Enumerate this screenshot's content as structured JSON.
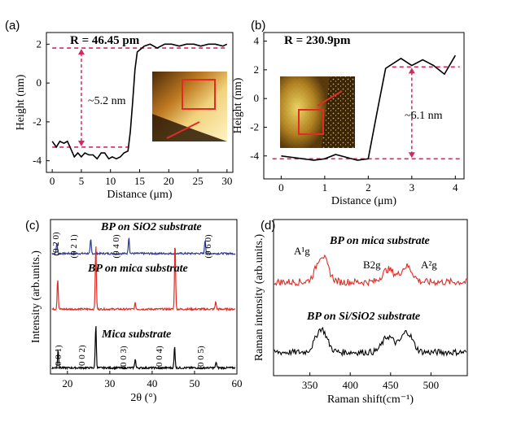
{
  "chart_data": [
    {
      "panel": "(a)",
      "type": "line",
      "title": "",
      "annotation_top": "R = 46.45 pm",
      "annotation_step": "~5.2 nm",
      "xlabel": "Distance (μm)",
      "ylabel": "Height (nm)",
      "xlim": [
        -1,
        31
      ],
      "ylim": [
        -4.6,
        2.6
      ],
      "xticks": [
        0,
        5,
        10,
        15,
        20,
        25,
        30
      ],
      "yticks": [
        2,
        0,
        -2,
        -4
      ],
      "x": [
        0,
        0.7,
        1.3,
        2,
        2.6,
        3.2,
        3.8,
        4.4,
        5,
        5.6,
        6.3,
        7,
        7.7,
        8.4,
        9,
        9.7,
        10.3,
        11,
        11.7,
        12.3,
        13,
        13.4,
        13.8,
        14.2,
        14.6,
        15.0,
        15.8,
        16.8,
        18,
        19.3,
        20.5,
        21.8,
        23,
        24.3,
        25.5,
        26.8,
        28,
        29.3,
        30
      ],
      "y": [
        -3.0,
        -3.3,
        -3.0,
        -3.1,
        -3.0,
        -3.4,
        -3.8,
        -3.6,
        -3.8,
        -3.6,
        -3.7,
        -3.7,
        -3.9,
        -3.6,
        -3.6,
        -3.9,
        -3.8,
        -3.9,
        -3.8,
        -3.6,
        -3.5,
        -2.5,
        -1.0,
        0.7,
        1.6,
        1.7,
        1.9,
        2.0,
        1.8,
        2.0,
        2.0,
        1.9,
        2.0,
        2.0,
        1.9,
        2.0,
        2.0,
        1.9,
        2.0
      ],
      "dashed_levels": [
        1.8,
        -3.3
      ],
      "arrow_x": 5
    },
    {
      "panel": "(b)",
      "type": "line",
      "title": "",
      "annotation_top": "R = 230.9pm",
      "annotation_step": "~6.1 nm",
      "xlabel": "Distance (μm)",
      "ylabel": "Height (nm)",
      "xlim": [
        -0.4,
        4.2
      ],
      "ylim": [
        -5.6,
        4.6
      ],
      "xticks": [
        0,
        1,
        2,
        3,
        4
      ],
      "yticks": [
        4,
        2,
        0,
        -2,
        -4
      ],
      "x": [
        0,
        0.25,
        0.5,
        0.75,
        1.0,
        1.25,
        1.5,
        1.75,
        2.0,
        2.2,
        2.4,
        2.75,
        3.0,
        3.25,
        3.5,
        3.75,
        4.0
      ],
      "y": [
        -4.0,
        -4.1,
        -4.2,
        -4.3,
        -4.2,
        -3.9,
        -4.1,
        -4.3,
        -4.2,
        -1.0,
        2.1,
        2.8,
        2.3,
        2.7,
        2.3,
        1.7,
        3.0
      ],
      "dashed_levels": [
        2.2,
        -4.2
      ],
      "arrow_x": 3.0
    },
    {
      "panel": "(c)",
      "type": "line",
      "title": "",
      "xlabel": "2θ (°)",
      "ylabel": "Intensity (arb.units.)",
      "xlim": [
        16,
        60
      ],
      "xticks": [
        20,
        30,
        40,
        50,
        60
      ],
      "series": [
        {
          "name": "BP on SiO2 substrate",
          "color": "#2e3b8e",
          "baseline": 0.78,
          "peaks": [
            [
              17.5,
              0.07
            ],
            [
              25.5,
              0.09
            ],
            [
              34.5,
              0.11
            ],
            [
              52.5,
              0.09
            ]
          ]
        },
        {
          "name": "BP on mica substrate",
          "color": "#e12b25",
          "baseline": 0.42,
          "peaks": [
            [
              17.7,
              0.2
            ],
            [
              26.7,
              0.42
            ],
            [
              36.0,
              0.04
            ],
            [
              45.4,
              0.44
            ],
            [
              55.0,
              0.05
            ]
          ]
        },
        {
          "name": "Mica substrate",
          "color": "#000000",
          "baseline": 0.04,
          "peaks": [
            [
              17.8,
              0.12
            ],
            [
              26.7,
              0.28
            ],
            [
              36.0,
              0.06
            ],
            [
              45.3,
              0.14
            ],
            [
              55.1,
              0.04
            ]
          ]
        }
      ],
      "peak_labels_top": [
        "(0 2 0)",
        "(0 2 1)",
        "(0 4 0)",
        "(0 6 0)"
      ],
      "peak_labels_bottom": [
        "(0 0 1)",
        "(0 0 2)",
        "(0 0 3)",
        "(0 0 4)",
        "(0 0 5)"
      ]
    },
    {
      "panel": "(d)",
      "type": "line",
      "title": "",
      "xlabel": "Raman shift(cm⁻¹)",
      "ylabel": "Raman intensity (arb.units.)",
      "xlim": [
        305,
        545
      ],
      "xticks": [
        350,
        400,
        450,
        500
      ],
      "series": [
        {
          "name": "BP on mica substrate",
          "color": "#e12b25",
          "baseline": 0.6,
          "peaks": [
            [
              365,
              0.17
            ],
            [
              447,
              0.08
            ],
            [
              470,
              0.1
            ]
          ]
        },
        {
          "name": "BP on Si/SiO2 substrate",
          "color": "#000000",
          "baseline": 0.15,
          "peaks": [
            [
              364,
              0.15
            ],
            [
              447,
              0.1
            ],
            [
              470,
              0.13
            ]
          ]
        }
      ],
      "peak_labels": [
        "A¹g",
        "B2g",
        "A²g"
      ]
    }
  ]
}
